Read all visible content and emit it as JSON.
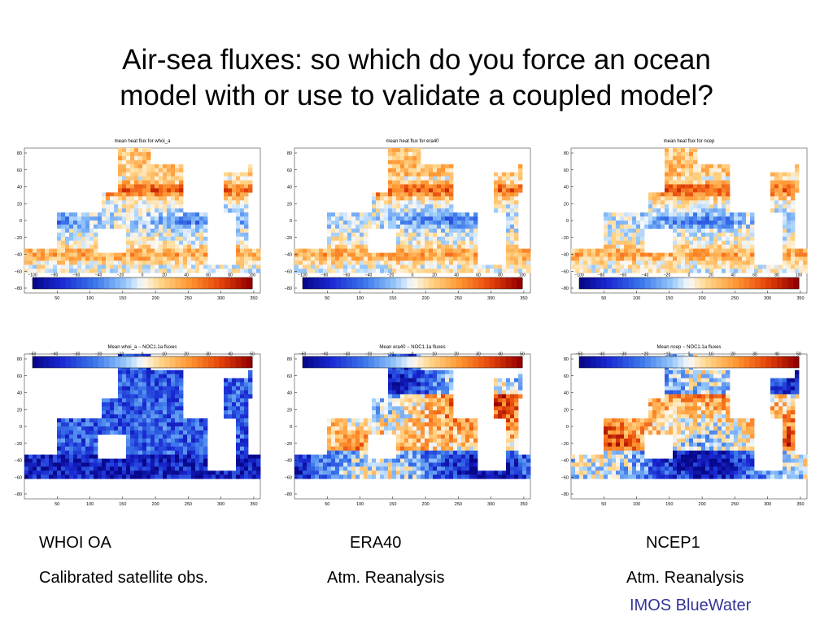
{
  "title_line1": "Air-sea fluxes: so which do you force an ocean",
  "title_line2": "model with or use to validate a coupled model?",
  "lat_ticks": [
    "80",
    "60",
    "40",
    "20",
    "0",
    "−20",
    "−40",
    "−60",
    "−80"
  ],
  "lon_ticks": [
    "50",
    "100",
    "150",
    "200",
    "250",
    "300",
    "350"
  ],
  "mean_ticks": [
    "−100",
    "−80",
    "−60",
    "−40",
    "−20",
    "0",
    "20",
    "40",
    "60",
    "80",
    "100"
  ],
  "diff_ticks": [
    "−50",
    "−40",
    "−30",
    "−20",
    "−10",
    "0",
    "10",
    "20",
    "30",
    "40",
    "50"
  ],
  "maps": [
    {
      "id": "whoi-mean",
      "title": "mean heat flux for whoi_a",
      "type": "mean",
      "seed": 1
    },
    {
      "id": "era40-mean",
      "title": "mean heat flux for era40",
      "type": "mean",
      "seed": 2
    },
    {
      "id": "ncep-mean",
      "title": "mean heat flux for ncep",
      "type": "mean",
      "seed": 3
    },
    {
      "id": "whoi-diff",
      "title": "Mean whoi_a − NOC1.1a fluxes",
      "type": "diff",
      "seed": 4
    },
    {
      "id": "era40-diff",
      "title": "Mean era40 − NOC1.1a fluxes",
      "type": "diff",
      "seed": 5
    },
    {
      "id": "ncep-diff",
      "title": "Mean ncep − NOC1.1a fluxes",
      "type": "diff",
      "seed": 6
    }
  ],
  "captions": {
    "whoi_name": "WHOI OA",
    "era_name": "ERA40",
    "ncep_name": "NCEP1",
    "whoi_desc": "Calibrated satellite obs.",
    "era_desc": "Atm. Reanalysis",
    "ncep_desc": "Atm. Reanalysis"
  },
  "footer": "IMOS BlueWater",
  "colors": {
    "footer": "#333399",
    "cold": "#1a2fd0",
    "warm": "#c81e00"
  }
}
